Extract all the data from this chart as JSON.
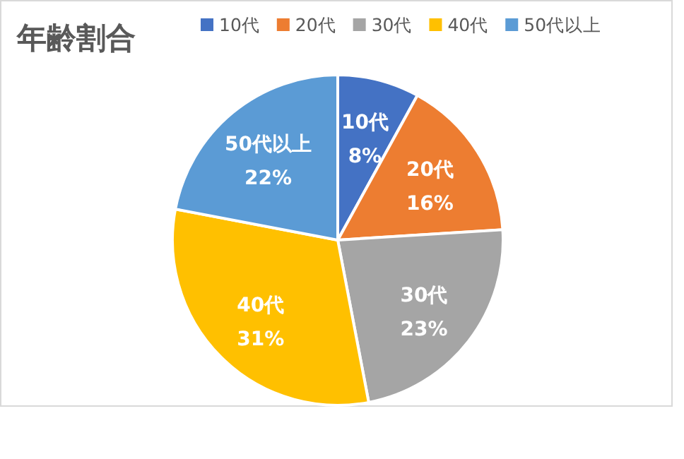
{
  "chart_data": {
    "type": "pie",
    "title": "年齢割合",
    "categories": [
      "10代",
      "20代",
      "30代",
      "40代",
      "50代以上"
    ],
    "values": [
      8,
      16,
      23,
      31,
      22
    ],
    "colors": [
      "#4472c4",
      "#ed7d31",
      "#a5a5a5",
      "#ffc000",
      "#5b9bd5"
    ],
    "value_labels": [
      "8%",
      "16%",
      "23%",
      "31%",
      "22%"
    ],
    "legend": "top"
  }
}
